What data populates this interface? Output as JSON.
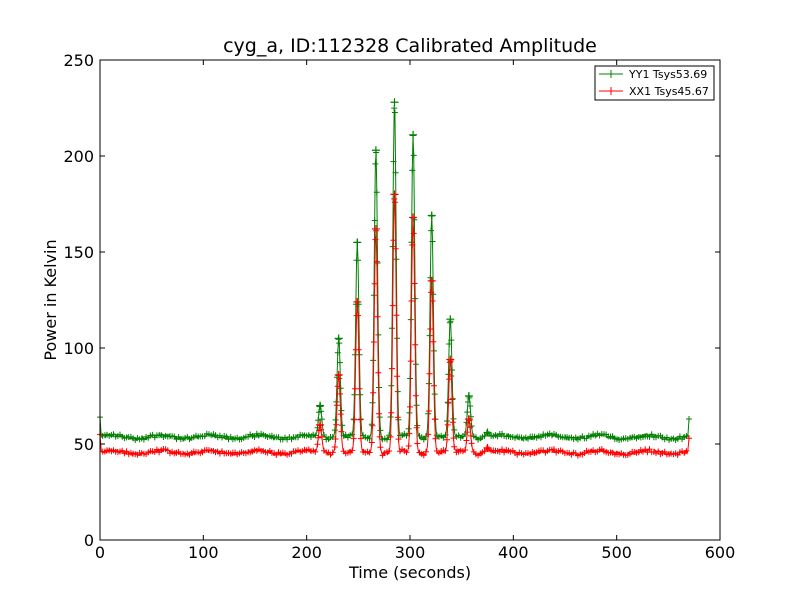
{
  "chart_data": {
    "type": "line",
    "title": "cyg_a, ID:112328 Calibrated Amplitude",
    "xlabel": "Time (seconds)",
    "ylabel": "Power in Kelvin",
    "xlim": [
      0,
      600
    ],
    "ylim": [
      0,
      250
    ],
    "xticks": [
      "0",
      "100",
      "200",
      "300",
      "400",
      "500",
      "600"
    ],
    "yticks": [
      "0",
      "50",
      "100",
      "150",
      "200",
      "250"
    ],
    "grid": false,
    "legend_position": "top-right",
    "marker": "plus",
    "series": [
      {
        "name": "YY1 Tsys53.69",
        "color": "#008000",
        "baseline": 53.69,
        "start_value": 64,
        "end_value": 63,
        "end_x": 570,
        "peaks": [
          {
            "x": 213,
            "y": 70
          },
          {
            "x": 231,
            "y": 105
          },
          {
            "x": 249,
            "y": 155
          },
          {
            "x": 267,
            "y": 203
          },
          {
            "x": 285,
            "y": 228
          },
          {
            "x": 303,
            "y": 211
          },
          {
            "x": 321,
            "y": 169
          },
          {
            "x": 339,
            "y": 115
          },
          {
            "x": 357,
            "y": 75
          },
          {
            "x": 375,
            "y": 56
          }
        ]
      },
      {
        "name": "XX1 Tsys45.67",
        "color": "#ff0000",
        "baseline": 45.67,
        "start_value": 55,
        "end_value": 53,
        "end_x": 570,
        "peaks": [
          {
            "x": 213,
            "y": 60
          },
          {
            "x": 231,
            "y": 86
          },
          {
            "x": 249,
            "y": 124
          },
          {
            "x": 267,
            "y": 162
          },
          {
            "x": 285,
            "y": 180
          },
          {
            "x": 303,
            "y": 168
          },
          {
            "x": 321,
            "y": 135
          },
          {
            "x": 339,
            "y": 94
          },
          {
            "x": 357,
            "y": 63
          },
          {
            "x": 375,
            "y": 48
          }
        ]
      }
    ]
  }
}
